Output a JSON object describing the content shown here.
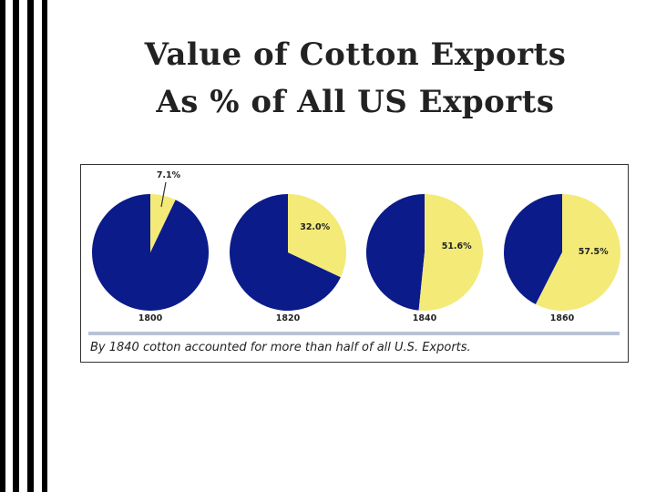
{
  "title": {
    "line1": "Value of Cotton Exports",
    "line2": "As % of All US Exports"
  },
  "colors": {
    "cotton": "#f3ea78",
    "other": "#0b1b8a",
    "divider": "#b8c4d6"
  },
  "chart_data": {
    "type": "pie",
    "categories": [
      "1800",
      "1820",
      "1840",
      "1860"
    ],
    "series": [
      {
        "values": [
          7.1,
          32.0,
          51.6,
          57.5
        ]
      }
    ],
    "data_labels": [
      "7.1%",
      "32.0%",
      "51.6%",
      "57.5%"
    ],
    "caption": "By 1840 cotton accounted for more than half of all U.S. Exports."
  }
}
